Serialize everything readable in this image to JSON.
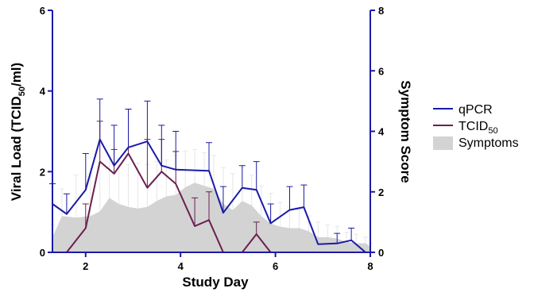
{
  "chart_data": {
    "type": "line",
    "xlabel": "Study Day",
    "ylabel_left": {
      "main": "Viral Load (TCID",
      "sub": "50",
      "tail": "/ml)"
    },
    "ylabel_right": "Symptom Score",
    "xlim": [
      1.3,
      8
    ],
    "ylim_left": [
      0,
      6
    ],
    "ylim_right": [
      0,
      8
    ],
    "x_ticks": [
      "2",
      "4",
      "6",
      "8"
    ],
    "y_left_ticks": [
      "0",
      "2",
      "4",
      "6"
    ],
    "y_right_ticks": [
      "0",
      "2",
      "4",
      "6",
      "8"
    ],
    "legend_position": "right",
    "colors": {
      "qpcr": "#1a1aa8",
      "tcid": "#6b1f4f",
      "symptoms": "#d3d3d3",
      "symptoms_err": "#e6e6e6",
      "axis": "#1a1aa8"
    },
    "series": [
      {
        "name": "qPCR",
        "axis": "left",
        "x": [
          1.3,
          1.6,
          2.0,
          2.3,
          2.6,
          2.9,
          3.3,
          3.6,
          3.9,
          4.6,
          4.9,
          5.3,
          5.6,
          5.9,
          6.3,
          6.6,
          6.9,
          7.3,
          7.6,
          7.9
        ],
        "y": [
          1.2,
          0.95,
          1.55,
          2.8,
          2.15,
          2.6,
          2.75,
          2.15,
          2.05,
          2.02,
          0.98,
          1.6,
          1.55,
          0.72,
          1.05,
          1.12,
          0.2,
          0.22,
          0.3,
          0.0
        ],
        "err": [
          0.5,
          0.5,
          0.9,
          1.0,
          1.0,
          0.95,
          1.0,
          1.0,
          0.95,
          0.7,
          0.65,
          0.55,
          0.7,
          0.48,
          0.58,
          0.55,
          0.0,
          0.25,
          0.3,
          0.0
        ]
      },
      {
        "name": "TCID50",
        "axis": "left",
        "x": [
          1.6,
          2.0,
          2.3,
          2.6,
          2.9,
          3.3,
          3.6,
          3.9,
          4.3,
          4.6,
          4.9,
          5.3,
          5.6,
          5.9
        ],
        "y": [
          0.0,
          0.6,
          2.25,
          1.95,
          2.45,
          1.6,
          2.0,
          1.7,
          0.65,
          0.8,
          0.0,
          0.0,
          0.45,
          0.0
        ],
        "err": [
          0.0,
          0.6,
          1.0,
          0.6,
          1.1,
          1.2,
          0.8,
          0.8,
          0.7,
          0.7,
          0.0,
          0.0,
          0.3,
          0.0
        ]
      },
      {
        "name": "Symptoms",
        "axis": "right",
        "x": [
          1.3,
          1.5,
          1.8,
          2.1,
          2.3,
          2.5,
          2.7,
          2.9,
          3.1,
          3.3,
          3.5,
          3.7,
          3.9,
          4.1,
          4.3,
          4.5,
          4.7,
          4.9,
          5.1,
          5.3,
          5.5,
          5.7,
          5.9,
          6.1,
          6.3,
          6.5,
          6.7,
          6.9,
          7.1,
          7.3,
          7.5,
          7.7,
          7.9,
          8.0
        ],
        "y": [
          0.5,
          1.2,
          1.15,
          1.2,
          1.35,
          1.8,
          1.6,
          1.5,
          1.45,
          1.5,
          1.7,
          1.85,
          1.9,
          2.15,
          2.3,
          2.2,
          2.1,
          1.6,
          1.4,
          1.7,
          1.55,
          1.2,
          0.95,
          0.85,
          0.8,
          0.8,
          0.7,
          0.5,
          0.5,
          0.45,
          0.35,
          0.3,
          0.3,
          0.2
        ],
        "err": [
          0.4,
          0.9,
          1.4,
          1.4,
          1.5,
          1.4,
          1.5,
          1.4,
          1.5,
          1.4,
          1.3,
          1.2,
          1.3,
          1.2,
          1.1,
          1.1,
          1.1,
          1.2,
          1.2,
          1.1,
          1.0,
          1.0,
          1.0,
          0.8,
          0.7,
          0.6,
          0.5,
          0.5,
          0.4,
          0.4,
          0.3,
          0.3,
          0.2,
          0.1
        ]
      }
    ],
    "legend": [
      {
        "key": "qpcr",
        "label": "qPCR",
        "sub": ""
      },
      {
        "key": "tcid",
        "label": "TCID",
        "sub": "50"
      },
      {
        "key": "symptoms",
        "label": "Symptoms",
        "sub": ""
      }
    ]
  }
}
